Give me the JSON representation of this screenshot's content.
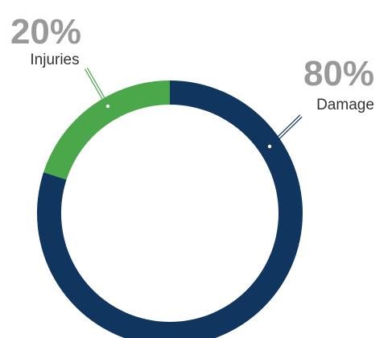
{
  "chart_data": {
    "type": "pie",
    "style": "donut",
    "legend": "none",
    "slices": [
      {
        "label": "Damage",
        "value": 80,
        "value_label": "80%",
        "color": "#10355e"
      },
      {
        "label": "Injuries",
        "value": 20,
        "value_label": "20%",
        "color": "#4aa84a"
      }
    ],
    "label_color": "#999999"
  }
}
